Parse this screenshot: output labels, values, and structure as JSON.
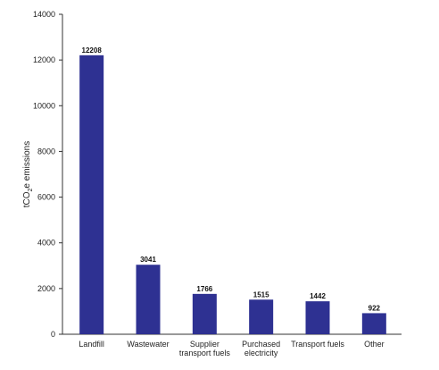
{
  "chart_data": {
    "type": "bar",
    "categories": [
      "Landfill",
      "Wastewater",
      "Supplier transport fuels",
      "Purchased electricity",
      "Transport fuels",
      "Other"
    ],
    "category_lines": [
      [
        "Landfill"
      ],
      [
        "Wastewater"
      ],
      [
        "Supplier",
        "transport fuels"
      ],
      [
        "Purchased",
        "electricity"
      ],
      [
        "Transport fuels"
      ],
      [
        "Other"
      ]
    ],
    "values": [
      12208,
      3041,
      1766,
      1515,
      1442,
      922
    ],
    "data_labels": [
      "12208",
      "3041",
      "1766",
      "1515",
      "1442",
      "922"
    ],
    "ylabel": "tCO2e emissions",
    "ylabel_parts": {
      "pre": "tCO",
      "sub": "2",
      "post": "e emissions"
    },
    "ylim": [
      0,
      14000
    ],
    "yticks": [
      0,
      2000,
      4000,
      6000,
      8000,
      10000,
      12000,
      14000
    ],
    "grid": false,
    "bar_color": "#2e3192"
  }
}
